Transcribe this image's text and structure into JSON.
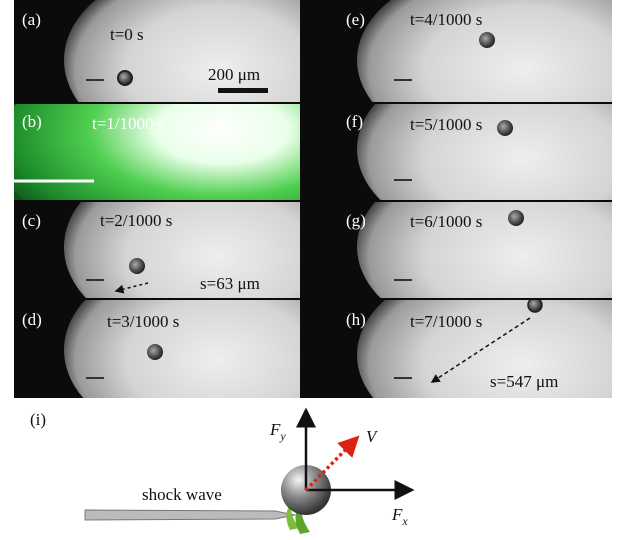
{
  "panels": [
    {
      "label": "(a)",
      "time": "t=0 s",
      "scale_bar": "200 μm"
    },
    {
      "label": "(b)",
      "time": "t=1/1000 s"
    },
    {
      "label": "(c)",
      "time": "t=2/1000 s",
      "displacement": "s=63 μm"
    },
    {
      "label": "(d)",
      "time": "t=3/1000 s"
    },
    {
      "label": "(e)",
      "time": "t=4/1000 s"
    },
    {
      "label": "(f)",
      "time": "t=5/1000 s"
    },
    {
      "label": "(g)",
      "time": "t=6/1000 s"
    },
    {
      "label": "(h)",
      "time": "t=7/1000 s",
      "displacement": "s=547 μm"
    }
  ],
  "diagram": {
    "label": "(i)",
    "shock_wave": "shock wave",
    "force_y": {
      "symbol": "F",
      "subscript": "y"
    },
    "force_x": {
      "symbol": "F",
      "subscript": "x"
    },
    "velocity": "V"
  }
}
